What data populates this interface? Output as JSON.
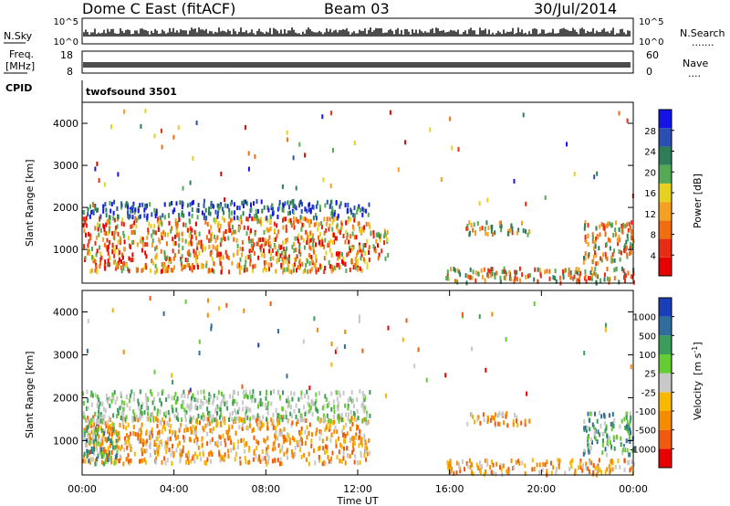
{
  "header": {
    "station": "Dome C East (fitACF)",
    "beam": "Beam 03",
    "date": "30/Jul/2014"
  },
  "info_panels": {
    "nsky_label": "N.Sky",
    "nsky_scale": [
      "10^5",
      "10^0"
    ],
    "nsearch_label": "N.Search",
    "nsearch_scale": [
      "10^5",
      "10^0"
    ],
    "freq_label": "Freq.",
    "freq_unit": "[MHz]",
    "freq_scale": [
      "18",
      "8"
    ],
    "nave_label": "Nave",
    "nave_scale": [
      "60",
      "0"
    ],
    "cpid_label": "CPID",
    "cpid_value": "twofsound 3501",
    "cpid_dots": "....",
    "nsearch_dots": "......."
  },
  "chart_data": [
    {
      "type": "heatmap",
      "name_hidden": true,
      "ylabel": "Slant Range [km]",
      "yticks": [
        "1000",
        "2000",
        "3000",
        "4000"
      ],
      "ylim": [
        200,
        4500
      ],
      "xlim_hours": [
        0,
        24
      ],
      "colorbar": {
        "label": "Power [dB]",
        "ticks": [
          "4",
          "8",
          "12",
          "16",
          "20",
          "24",
          "28"
        ],
        "colors": [
          "#1414e6",
          "#2a4fb0",
          "#2e7d5a",
          "#55aa55",
          "#e6d21e",
          "#f4a020",
          "#f06d10",
          "#e82c14",
          "#e60000"
        ]
      },
      "echo_regions": [
        {
          "t0": 0.0,
          "t1": 12.5,
          "r0": 500,
          "r1": 1800,
          "level": "strong"
        },
        {
          "t0": 0.0,
          "t1": 12.5,
          "r0": 1800,
          "r1": 2200,
          "level": "weak"
        },
        {
          "t0": 12.5,
          "t1": 13.3,
          "r0": 800,
          "r1": 1500,
          "level": "strong"
        },
        {
          "t0": 15.8,
          "t1": 24.0,
          "r0": 250,
          "r1": 600,
          "level": "medium"
        },
        {
          "t0": 16.7,
          "t1": 19.5,
          "r0": 1400,
          "r1": 1700,
          "level": "medium"
        },
        {
          "t0": 21.8,
          "t1": 24.0,
          "r0": 700,
          "r1": 1700,
          "level": "medium"
        }
      ]
    },
    {
      "type": "heatmap",
      "ylabel": "Slant Range [km]",
      "yticks": [
        "1000",
        "2000",
        "3000",
        "4000"
      ],
      "ylim": [
        200,
        4500
      ],
      "xlim_hours": [
        0,
        24
      ],
      "xlabel": "Time UT",
      "xticks": [
        "00:00",
        "04:00",
        "08:00",
        "12:00",
        "16:00",
        "20:00",
        "00:00"
      ],
      "colorbar": {
        "label": "Velocity",
        "unit": "[m s",
        "unit_exp": "-1",
        "unit_close": "]",
        "ticks": [
          "1000",
          "500",
          "100",
          "25",
          "-25",
          "-100",
          "-500",
          "-1000"
        ],
        "colors": [
          "#1b3fb8",
          "#2f6e9c",
          "#3c9c5a",
          "#66cc33",
          "#c8c8c8",
          "#f8b800",
          "#f58c00",
          "#f05a10",
          "#e60000"
        ]
      },
      "echo_regions": [
        {
          "t0": 0.0,
          "t1": 12.5,
          "r0": 500,
          "r1": 1600,
          "level": "away"
        },
        {
          "t0": 0.0,
          "t1": 12.5,
          "r0": 1500,
          "r1": 2200,
          "level": "ground"
        },
        {
          "t0": 0.0,
          "t1": 1.5,
          "r0": 500,
          "r1": 1500,
          "level": "toward"
        },
        {
          "t0": 15.8,
          "t1": 24.0,
          "r0": 250,
          "r1": 600,
          "level": "away"
        },
        {
          "t0": 16.7,
          "t1": 19.5,
          "r0": 1400,
          "r1": 1700,
          "level": "away"
        },
        {
          "t0": 21.8,
          "t1": 24.0,
          "r0": 700,
          "r1": 1700,
          "level": "toward"
        }
      ]
    }
  ]
}
